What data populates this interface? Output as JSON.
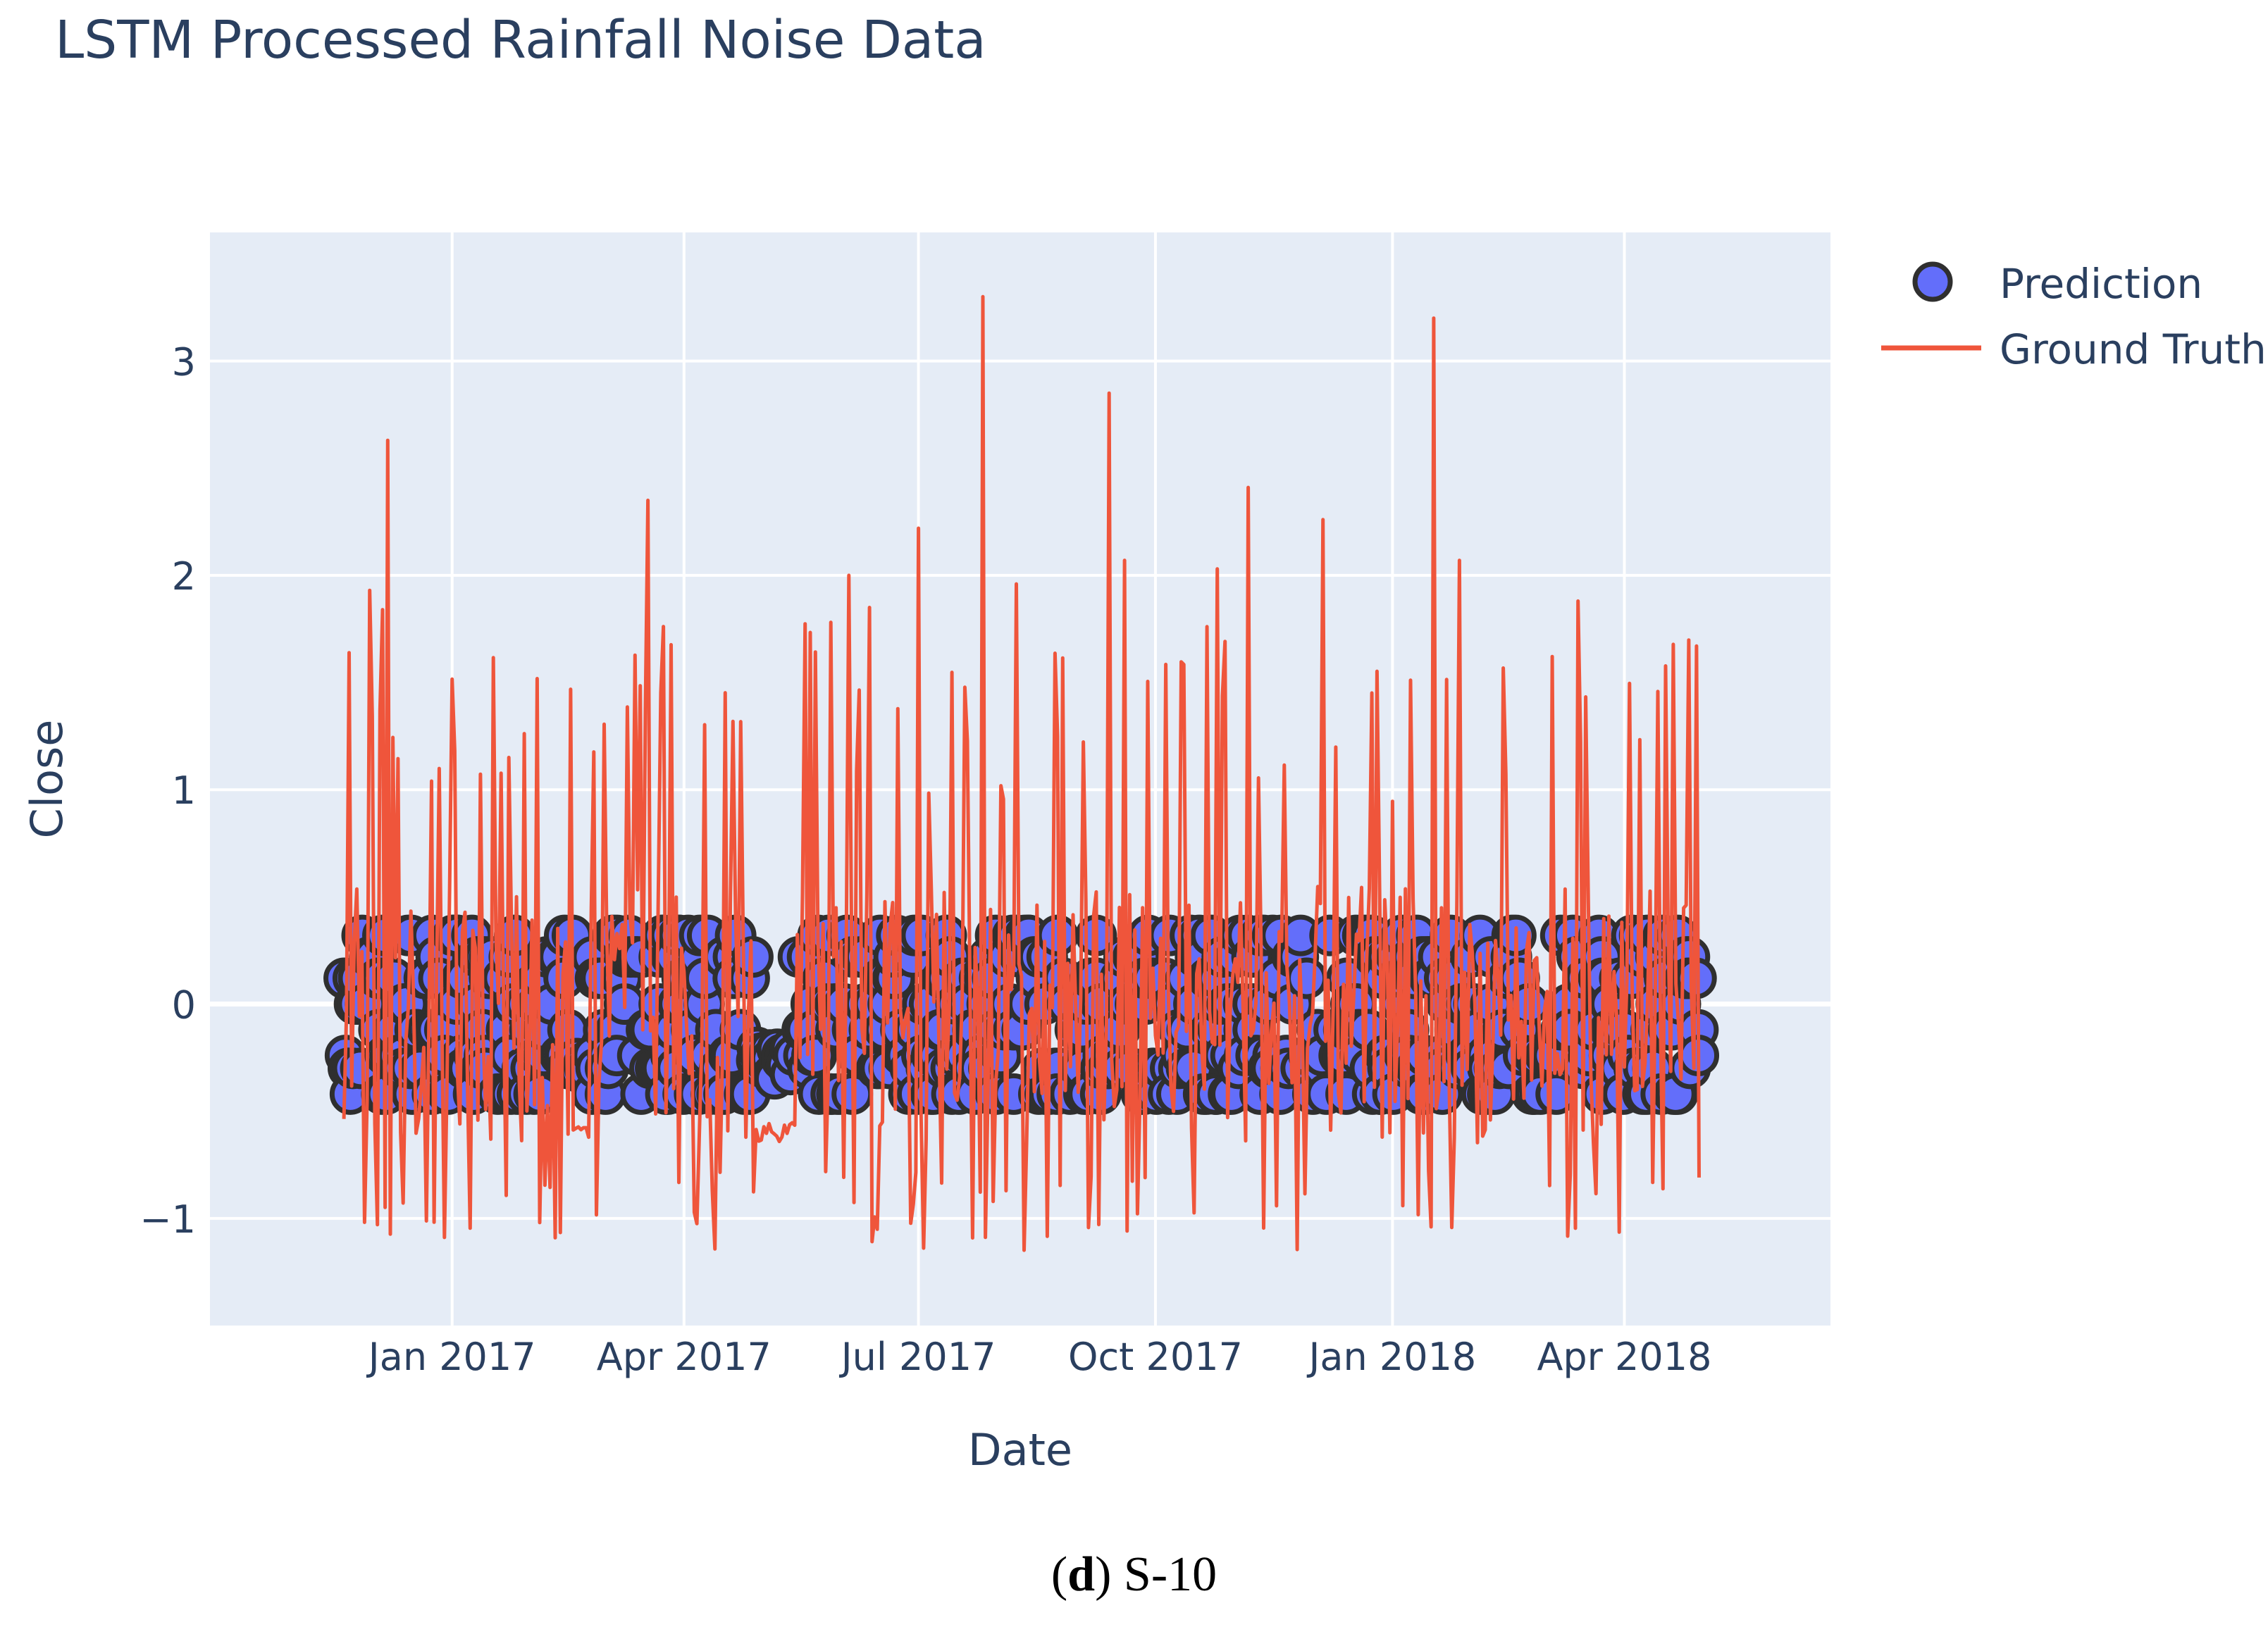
{
  "chart_data": {
    "type": "scatter+line",
    "title": "LSTM Processed Rainfall Noise Data",
    "xlabel": "Date",
    "ylabel": "Close",
    "x_range": [
      "2016-09-29",
      "2018-06-20"
    ],
    "ylim": [
      -1.5,
      3.6
    ],
    "x_ticks": [
      {
        "date": "2017-01-01",
        "label": "Jan 2017"
      },
      {
        "date": "2017-04-01",
        "label": "Apr 2017"
      },
      {
        "date": "2017-07-01",
        "label": "Jul 2017"
      },
      {
        "date": "2017-10-01",
        "label": "Oct 2017"
      },
      {
        "date": "2018-01-01",
        "label": "Jan 2018"
      },
      {
        "date": "2018-04-01",
        "label": "Apr 2018"
      }
    ],
    "y_ticks": [
      {
        "value": -1,
        "label": "−1"
      },
      {
        "value": 0,
        "label": "0"
      },
      {
        "value": 1,
        "label": "1"
      },
      {
        "value": 2,
        "label": "2"
      },
      {
        "value": 3,
        "label": "3"
      }
    ],
    "grid": true,
    "legend_position": "top-right",
    "series": [
      {
        "name": "Prediction",
        "mode": "markers",
        "color": "#636efa",
        "outline": "#2f2f2f",
        "start": "2016-11-20",
        "end": "2018-04-30",
        "levels": [
          -0.42,
          -0.3,
          -0.24,
          -0.12,
          0.0,
          0.12,
          0.22,
          0.32
        ]
      },
      {
        "name": "Ground Truth",
        "mode": "lines",
        "color": "#ef553b",
        "start": "2016-11-20",
        "end": "2018-04-30",
        "baseline": [
          -0.9,
          0.4
        ],
        "peaks": [
          {
            "date": "2016-12-07",
            "value": 2.63
          },
          {
            "date": "2016-11-30",
            "value": 1.93
          },
          {
            "date": "2016-12-05",
            "value": 1.84
          },
          {
            "date": "2017-03-18",
            "value": 2.35
          },
          {
            "date": "2017-06-04",
            "value": 2.0
          },
          {
            "date": "2017-06-12",
            "value": 1.85
          },
          {
            "date": "2017-07-01",
            "value": 2.22
          },
          {
            "date": "2017-07-26",
            "value": 3.3
          },
          {
            "date": "2017-08-08",
            "value": 1.96
          },
          {
            "date": "2017-09-13",
            "value": 2.85
          },
          {
            "date": "2017-09-19",
            "value": 2.07
          },
          {
            "date": "2017-10-25",
            "value": 2.03
          },
          {
            "date": "2017-11-06",
            "value": 2.41
          },
          {
            "date": "2017-12-05",
            "value": 2.26
          },
          {
            "date": "2018-01-17",
            "value": 3.2
          },
          {
            "date": "2018-01-27",
            "value": 2.07
          },
          {
            "date": "2018-03-14",
            "value": 1.88
          },
          {
            "date": "2018-04-29",
            "value": 1.67
          }
        ]
      }
    ]
  },
  "legend": {
    "prediction_label": "Prediction",
    "ground_truth_label": "Ground Truth"
  },
  "caption": {
    "label": "d",
    "text": " S-10"
  }
}
